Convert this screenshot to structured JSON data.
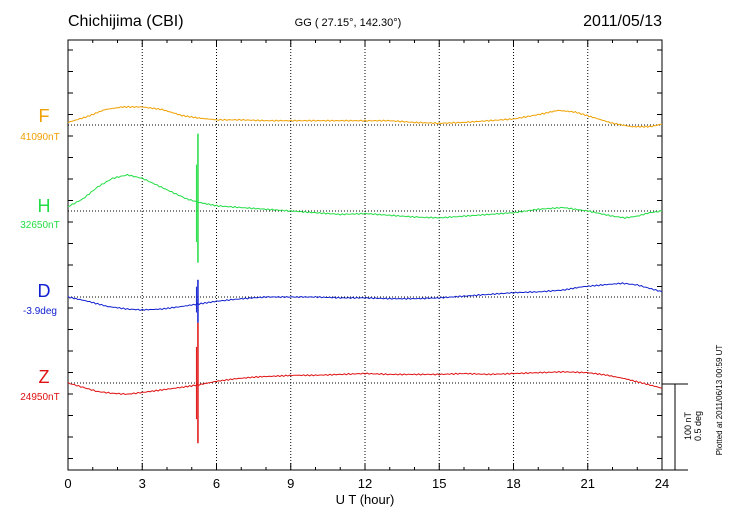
{
  "header": {
    "station": "Chichijima (CBI)",
    "coords": "GG ( 27.15°, 142.30°)",
    "date": "2011/05/13"
  },
  "side_note": "Plotted at 2011/06/13 00:59 UT",
  "scale": {
    "nt": "100 nT",
    "deg": "0.5 deg"
  },
  "chart_data": {
    "type": "line",
    "title": "",
    "xlabel": "U T (hour)",
    "ylabel": "",
    "xlim": [
      0,
      24
    ],
    "x_ticks": [
      0,
      3,
      6,
      9,
      12,
      15,
      18,
      21,
      24
    ],
    "y_units": "nT (offset from baseline); scale bar 100 nT / 0.5 deg",
    "grid": true,
    "series": [
      {
        "name": "F",
        "baseline_label": "41090nT",
        "color": "#f0a000",
        "x": [
          0,
          0.8,
          1.5,
          2.2,
          3.0,
          3.8,
          4.6,
          5.3,
          6.0,
          7.0,
          8.0,
          9.0,
          10.0,
          11.0,
          12.0,
          13.0,
          14.0,
          15.0,
          16.0,
          17.0,
          18.0,
          19.0,
          19.8,
          20.5,
          21.2,
          22.0,
          22.8,
          23.5,
          24.0
        ],
        "values": [
          3,
          10,
          18,
          21,
          21,
          18,
          11,
          8,
          6,
          6,
          5,
          5,
          5,
          5,
          5,
          5,
          3,
          2,
          3,
          5,
          7,
          12,
          17,
          15,
          9,
          2,
          -2,
          -2,
          1
        ],
        "spikes": []
      },
      {
        "name": "H",
        "baseline_label": "32650nT",
        "color": "#22dd44",
        "x": [
          0,
          0.6,
          1.2,
          1.8,
          2.4,
          3.0,
          3.6,
          4.2,
          4.8,
          5.3,
          6.0,
          7.0,
          8.0,
          9.0,
          10.0,
          11.0,
          12.0,
          13.0,
          14.0,
          15.0,
          16.0,
          17.0,
          18.0,
          19.0,
          20.0,
          21.0,
          22.0,
          22.5,
          23.0,
          23.5,
          24.0
        ],
        "values": [
          5,
          14,
          28,
          38,
          42,
          38,
          30,
          22,
          14,
          10,
          6,
          4,
          2,
          0,
          -2,
          -4,
          -3,
          -5,
          -7,
          -8,
          -6,
          -4,
          -2,
          2,
          4,
          0,
          -6,
          -8,
          -6,
          -2,
          0
        ],
        "spikes": [
          {
            "x": 5.25,
            "max": 90,
            "min": -60
          }
        ]
      },
      {
        "name": "D",
        "baseline_label": "-3.9deg",
        "color": "#1020d0",
        "x": [
          0,
          0.8,
          1.6,
          2.4,
          3.0,
          3.8,
          4.6,
          5.3,
          6.0,
          7.0,
          8.0,
          9.0,
          10.0,
          11.0,
          12.0,
          13.0,
          14.0,
          15.0,
          16.0,
          17.0,
          18.0,
          19.0,
          20.0,
          20.8,
          21.6,
          22.4,
          23.0,
          23.5,
          24.0
        ],
        "values": [
          0,
          -5,
          -11,
          -14,
          -15,
          -14,
          -11,
          -8,
          -5,
          -2,
          0,
          0,
          0,
          -1,
          -1,
          -2,
          -2,
          -1,
          1,
          3,
          5,
          6,
          8,
          12,
          14,
          16,
          14,
          10,
          6
        ],
        "spikes": [
          {
            "x": 5.25,
            "max": 20,
            "min": -30
          }
        ]
      },
      {
        "name": "Z",
        "baseline_label": "24950nT",
        "color": "#e01010",
        "x": [
          0,
          0.6,
          1.2,
          1.8,
          2.4,
          3.0,
          3.8,
          4.6,
          5.3,
          6.0,
          6.8,
          7.6,
          8.4,
          9.2,
          10.0,
          11.0,
          12.0,
          13.0,
          14.0,
          15.0,
          16.0,
          17.0,
          18.0,
          19.0,
          20.0,
          21.0,
          21.8,
          22.5,
          23.2,
          24.0
        ],
        "values": [
          0,
          -5,
          -10,
          -12,
          -13,
          -11,
          -8,
          -5,
          -2,
          2,
          5,
          7,
          8,
          9,
          9,
          10,
          11,
          10,
          10,
          10,
          11,
          10,
          11,
          12,
          13,
          12,
          9,
          5,
          0,
          -6
        ],
        "spikes": [
          {
            "x": 5.25,
            "max": 70,
            "min": -70
          }
        ]
      }
    ]
  }
}
